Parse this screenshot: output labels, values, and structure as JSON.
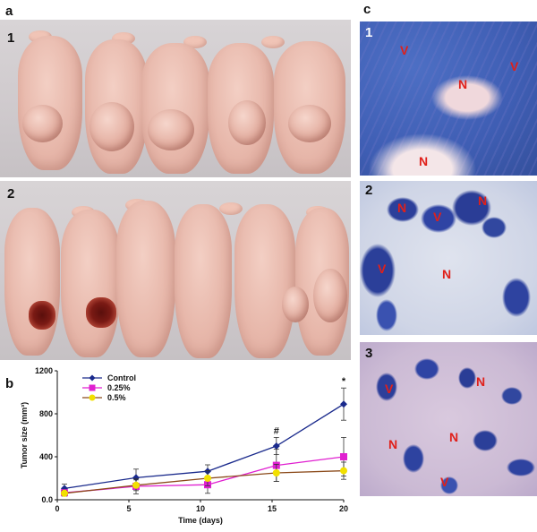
{
  "panels": {
    "a_label": "a",
    "b_label": "b",
    "c_label": "c"
  },
  "photos": {
    "row1_label": "1",
    "row2_label": "2"
  },
  "histology": {
    "p1_label": "1",
    "p2_label": "2",
    "p3_label": "3",
    "p1_marks": [
      "V",
      "N",
      "V",
      "N"
    ],
    "p2_marks": [
      "N",
      "V",
      "N",
      "V",
      "N"
    ],
    "p3_marks": [
      "V",
      "N",
      "N",
      "N",
      "V"
    ]
  },
  "chart_data": {
    "type": "line",
    "xlabel": "Time (days)",
    "ylabel": "Tumor size (mm³)",
    "x": [
      0.5,
      5.5,
      10.5,
      15.3,
      20
    ],
    "xlim": [
      0,
      20
    ],
    "ylim": [
      0,
      1200
    ],
    "xticks": [
      "0",
      "5",
      "10",
      "15",
      "20"
    ],
    "yticks": [
      "0.0",
      "400",
      "800",
      "1200"
    ],
    "series": [
      {
        "name": "Control",
        "color": "#1a2a8c",
        "marker": "diamond",
        "values": [
          105,
          205,
          265,
          500,
          890
        ],
        "errors": [
          40,
          80,
          60,
          80,
          150
        ]
      },
      {
        "name": "0.25%",
        "color": "#e020d0",
        "marker": "square",
        "values": [
          65,
          125,
          140,
          320,
          400
        ],
        "errors": [
          30,
          70,
          80,
          150,
          180
        ]
      },
      {
        "name": "0.5%",
        "color": "#f2e000",
        "marker": "circle",
        "values": [
          60,
          135,
          200,
          250,
          270
        ],
        "errors": [
          25,
          50,
          70,
          80,
          80
        ]
      }
    ],
    "annotations": [
      {
        "text": "#",
        "x": 15.3,
        "y": 500
      },
      {
        "text": "*",
        "x": 20,
        "y": 890
      }
    ]
  }
}
